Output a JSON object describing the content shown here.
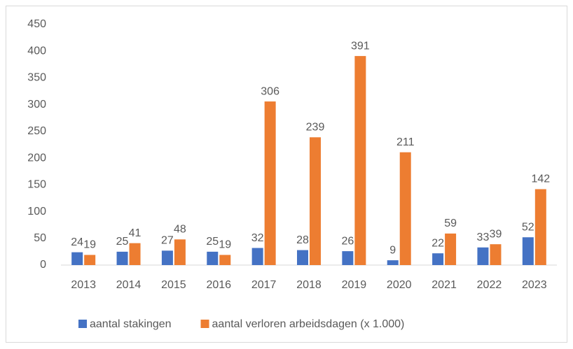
{
  "chart_data": {
    "type": "bar",
    "categories": [
      "2013",
      "2014",
      "2015",
      "2016",
      "2017",
      "2018",
      "2019",
      "2020",
      "2021",
      "2022",
      "2023"
    ],
    "series": [
      {
        "name": "aantal stakingen",
        "color": "#4472c4",
        "values": [
          24,
          25,
          27,
          25,
          32,
          28,
          26,
          9,
          22,
          33,
          52
        ]
      },
      {
        "name": "aantal verloren arbeidsdagen (x 1.000)",
        "color": "#ed7d31",
        "values": [
          19,
          41,
          48,
          19,
          306,
          239,
          391,
          211,
          59,
          39,
          142
        ]
      }
    ],
    "ylim": [
      0,
      450
    ],
    "yticks": [
      0,
      50,
      100,
      150,
      200,
      250,
      300,
      350,
      400,
      450
    ],
    "grid": false,
    "legend": "bottom"
  }
}
